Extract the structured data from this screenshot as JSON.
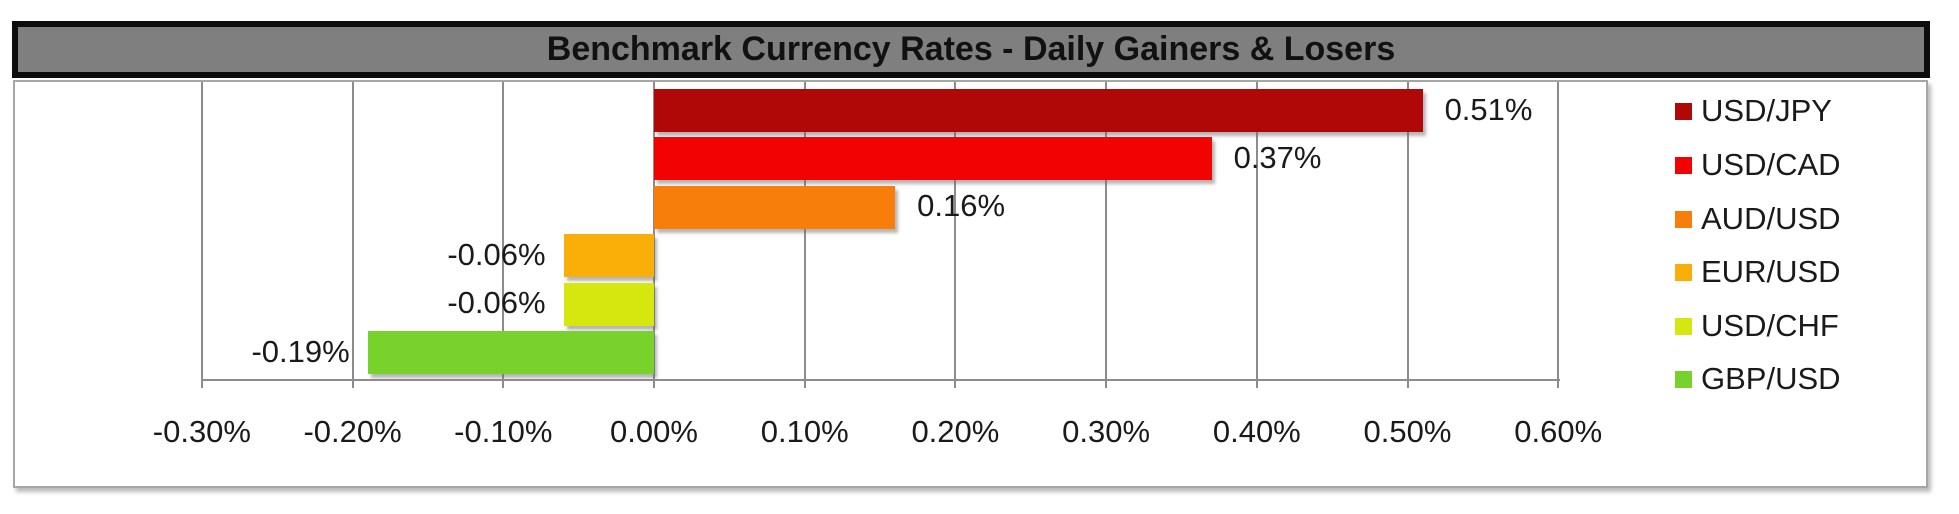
{
  "title": "Benchmark Currency Rates - Daily Gainers & Losers",
  "colors": {
    "title_background": "#7F7F7F",
    "title_border": "#0D0D0D",
    "chart_border": "#A6A6A6",
    "gridline": "#8C8C8C",
    "label_text": "#1A1A1A"
  },
  "chart_data": {
    "type": "bar",
    "orientation": "horizontal",
    "title": "Benchmark Currency Rates - Daily Gainers & Losers",
    "categories": [
      "USD/JPY",
      "USD/CAD",
      "AUD/USD",
      "EUR/USD",
      "USD/CHF",
      "GBP/USD"
    ],
    "values": [
      0.51,
      0.37,
      0.16,
      -0.06,
      -0.06,
      -0.19
    ],
    "value_labels": [
      "0.51%",
      "0.37%",
      "0.16%",
      "-0.06%",
      "-0.06%",
      "-0.19%"
    ],
    "bar_colors": [
      "#B00707",
      "#F20202",
      "#F87E0B",
      "#FAAF08",
      "#D6E60F",
      "#77D32B"
    ],
    "xlabel": "",
    "ylabel": "",
    "xlim": [
      -0.3,
      0.6
    ],
    "x_ticks": [
      {
        "value": -0.3,
        "label": "-0.30%"
      },
      {
        "value": -0.2,
        "label": "-0.20%"
      },
      {
        "value": -0.1,
        "label": "-0.10%"
      },
      {
        "value": 0.0,
        "label": "0.00%"
      },
      {
        "value": 0.1,
        "label": "0.10%"
      },
      {
        "value": 0.2,
        "label": "0.20%"
      },
      {
        "value": 0.3,
        "label": "0.30%"
      },
      {
        "value": 0.4,
        "label": "0.40%"
      },
      {
        "value": 0.5,
        "label": "0.50%"
      },
      {
        "value": 0.6,
        "label": "0.60%"
      }
    ],
    "grid": "vertical-on",
    "legend_position": "right",
    "legend": [
      {
        "label": "USD/JPY",
        "color": "#B00707"
      },
      {
        "label": "USD/CAD",
        "color": "#F20202"
      },
      {
        "label": "AUD/USD",
        "color": "#F87E0B"
      },
      {
        "label": "EUR/USD",
        "color": "#FAAF08"
      },
      {
        "label": "USD/CHF",
        "color": "#D6E60F"
      },
      {
        "label": "GBP/USD",
        "color": "#77D32B"
      }
    ]
  }
}
